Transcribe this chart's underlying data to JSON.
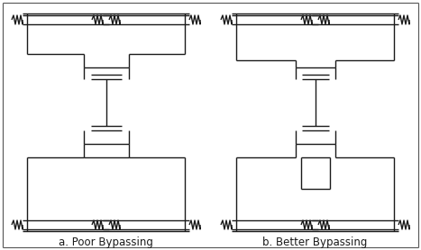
{
  "figure_width": 4.67,
  "figure_height": 2.78,
  "dpi": 100,
  "bg_color": "#ffffff",
  "line_color": "#1a1a1a",
  "line_width": 1.0,
  "label_a": "a. Poor Bypassing",
  "label_b": "b. Better Bypassing",
  "label_fontsize": 8.5,
  "border_color": "#555555"
}
